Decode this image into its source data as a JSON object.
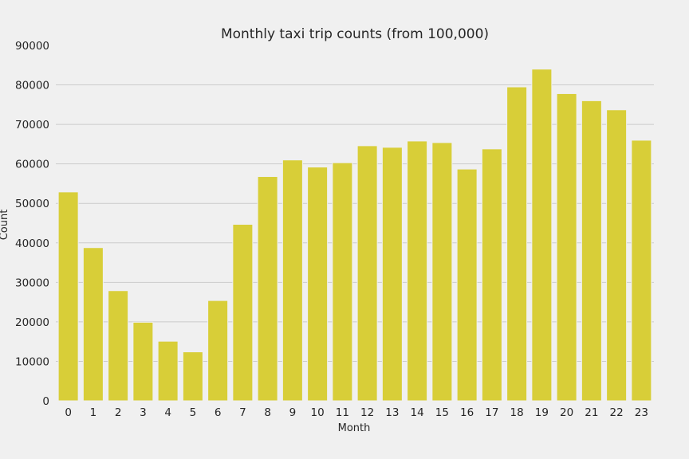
{
  "chart_data": {
    "type": "bar",
    "title": "Monthly taxi trip counts (from 100,000)",
    "xlabel": "Month",
    "ylabel": "Count",
    "categories": [
      "0",
      "1",
      "2",
      "3",
      "4",
      "5",
      "6",
      "7",
      "8",
      "9",
      "10",
      "11",
      "12",
      "13",
      "14",
      "15",
      "16",
      "17",
      "18",
      "19",
      "20",
      "21",
      "22",
      "23"
    ],
    "values": [
      52900,
      38800,
      27900,
      19900,
      15100,
      12400,
      25400,
      44700,
      56800,
      61000,
      59200,
      60300,
      64600,
      64200,
      65800,
      65400,
      58700,
      63800,
      79500,
      84000,
      77800,
      76000,
      73700,
      66000
    ],
    "ylim": [
      0,
      90000
    ],
    "yticks": [
      0,
      10000,
      20000,
      30000,
      40000,
      50000,
      60000,
      70000,
      80000,
      90000
    ],
    "grid": true,
    "bar_color": "#d8ce38"
  }
}
